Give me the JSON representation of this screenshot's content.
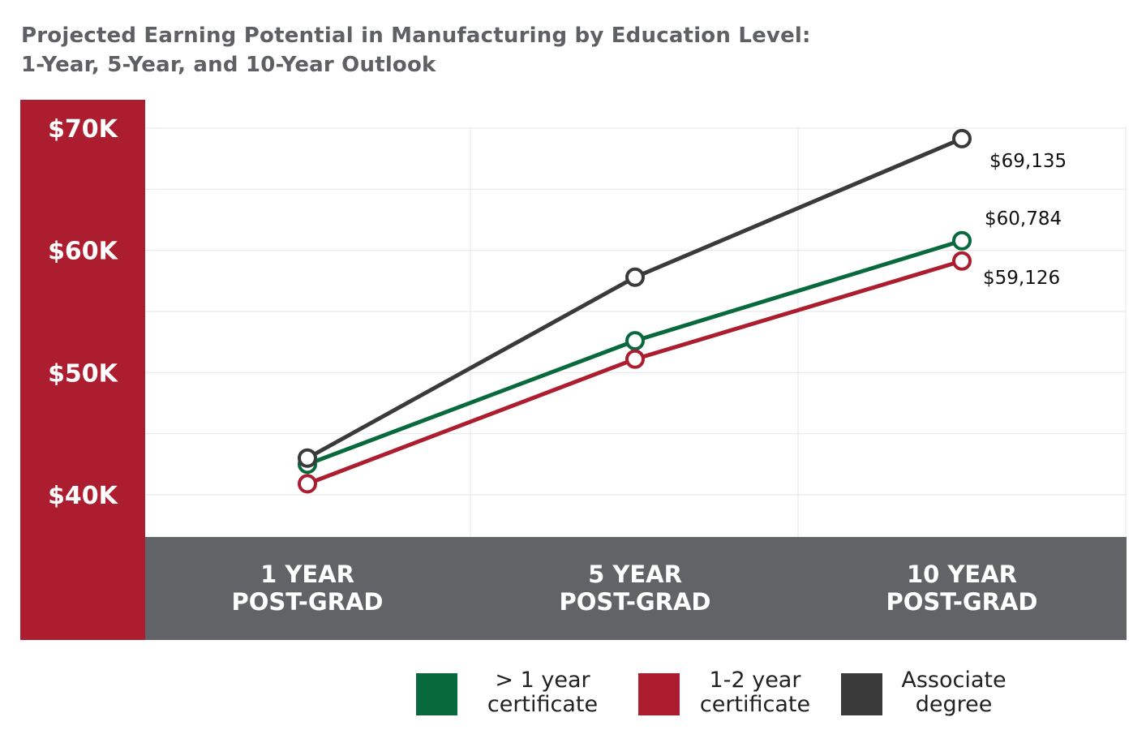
{
  "chart_data": {
    "type": "line",
    "title_line1": "Projected Earning Potential in Manufacturing by Education Level:",
    "title_line2": "1-Year, 5-Year, and 10-Year Outlook",
    "categories": [
      [
        "1 YEAR",
        "POST-GRAD"
      ],
      [
        "5 YEAR",
        "POST-GRAD"
      ],
      [
        "10 YEAR",
        "POST-GRAD"
      ]
    ],
    "ylim": [
      36.5,
      70
    ],
    "yunit": "thousand USD",
    "yticks": [
      {
        "value": 70,
        "label": "$70K"
      },
      {
        "value": 60,
        "label": "$60K"
      },
      {
        "value": 50,
        "label": "$50K"
      },
      {
        "value": 40,
        "label": "$40K"
      }
    ],
    "grid": true,
    "legend_position": "bottom-right",
    "series": [
      {
        "name": [
          "> 1 year",
          "certificate"
        ],
        "color": "#086a3c",
        "values": [
          42.5,
          52.6,
          60.784
        ],
        "last_label": "$60,784"
      },
      {
        "name": [
          "1-2 year",
          "certificate"
        ],
        "color": "#ac1e2f",
        "values": [
          40.9,
          51.1,
          59.126
        ],
        "last_label": "$59,126"
      },
      {
        "name": [
          "Associate",
          "degree"
        ],
        "color": "#3a3a3a",
        "values": [
          43.0,
          57.8,
          69.135
        ],
        "last_label": "$69,135"
      }
    ],
    "colors": {
      "yaxis_band": "#ac1e2f",
      "xaxis_band": "#616366",
      "grid": "#e6e6e6"
    }
  }
}
